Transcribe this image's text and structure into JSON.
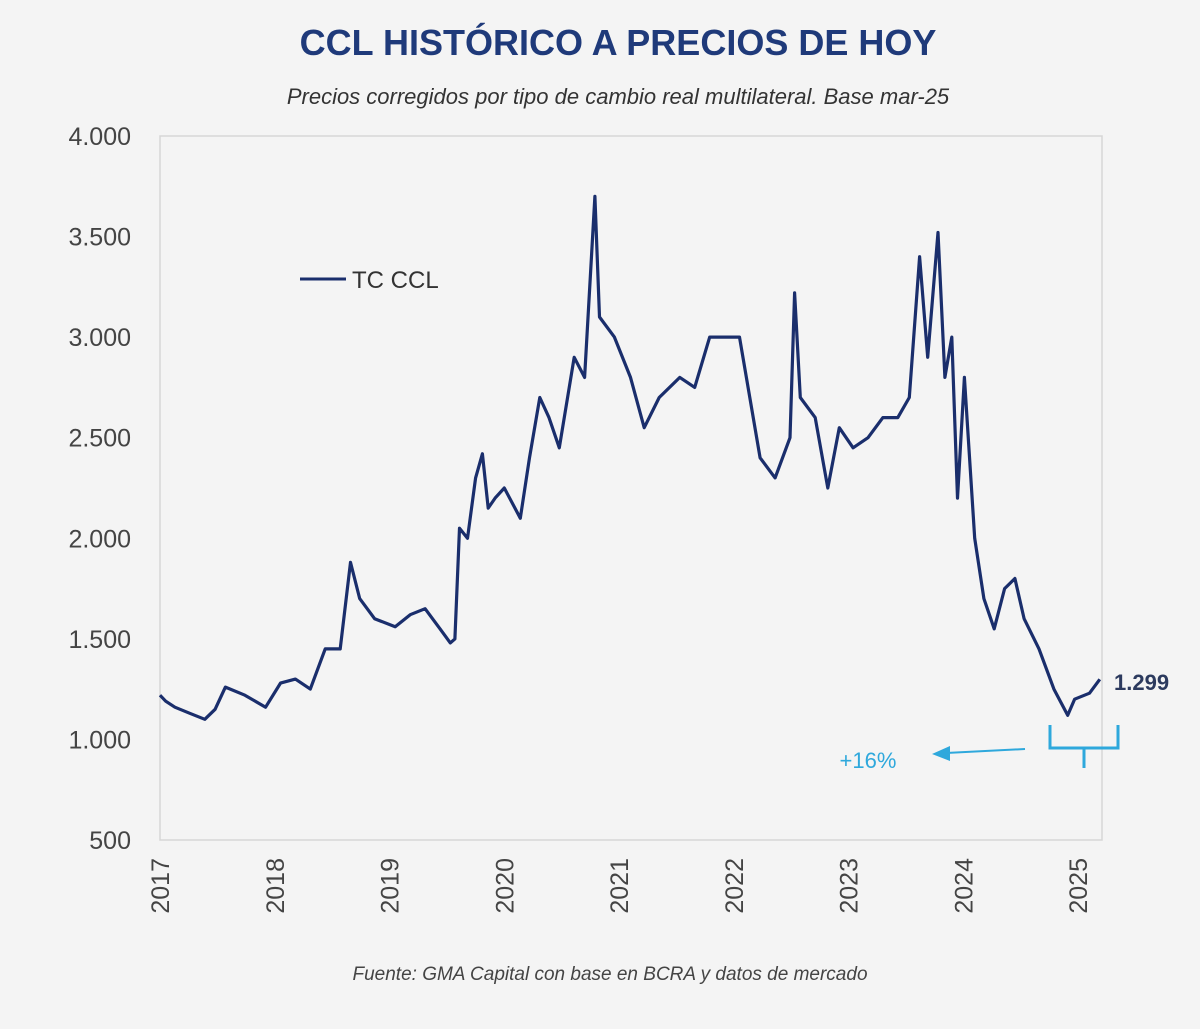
{
  "chart_data": {
    "type": "line",
    "title": "CCL HISTÓRICO A PRECIOS DE HOY",
    "subtitle": "Precios corregidos por tipo de cambio real multilateral. Base mar-25",
    "source": "Fuente: GMA Capital con base en BCRA y datos de mercado",
    "xlabel": "",
    "ylabel": "",
    "ylim": [
      500,
      4000
    ],
    "xlim": [
      2017,
      2025.21
    ],
    "yticks": [
      500,
      1000,
      1500,
      2000,
      2500,
      3000,
      3500,
      4000
    ],
    "ytick_labels": [
      "500",
      "1.000",
      "1.500",
      "2.000",
      "2.500",
      "3.000",
      "3.500",
      "4.000"
    ],
    "xtick_labels": [
      "2017",
      "2018",
      "2019",
      "2020",
      "2021",
      "2022",
      "2023",
      "2024",
      "2025"
    ],
    "grid": false,
    "legend": {
      "position": "top-left",
      "entries": [
        "TC CCL"
      ]
    },
    "series": [
      {
        "name": "TC CCL",
        "color": "#1a2e6c",
        "points": [
          [
            2017.0,
            1220
          ],
          [
            2017.05,
            1190
          ],
          [
            2017.13,
            1160
          ],
          [
            2017.26,
            1130
          ],
          [
            2017.39,
            1100
          ],
          [
            2017.48,
            1150
          ],
          [
            2017.57,
            1260
          ],
          [
            2017.74,
            1220
          ],
          [
            2017.92,
            1160
          ],
          [
            2018.05,
            1280
          ],
          [
            2018.18,
            1300
          ],
          [
            2018.31,
            1250
          ],
          [
            2018.44,
            1450
          ],
          [
            2018.57,
            1450
          ],
          [
            2018.66,
            1880
          ],
          [
            2018.74,
            1700
          ],
          [
            2018.87,
            1600
          ],
          [
            2019.05,
            1560
          ],
          [
            2019.18,
            1620
          ],
          [
            2019.31,
            1650
          ],
          [
            2019.44,
            1550
          ],
          [
            2019.53,
            1480
          ],
          [
            2019.57,
            1500
          ],
          [
            2019.61,
            2050
          ],
          [
            2019.68,
            2000
          ],
          [
            2019.75,
            2300
          ],
          [
            2019.81,
            2420
          ],
          [
            2019.86,
            2150
          ],
          [
            2019.92,
            2200
          ],
          [
            2020.0,
            2250
          ],
          [
            2020.14,
            2100
          ],
          [
            2020.22,
            2400
          ],
          [
            2020.31,
            2700
          ],
          [
            2020.39,
            2600
          ],
          [
            2020.48,
            2450
          ],
          [
            2020.61,
            2900
          ],
          [
            2020.7,
            2800
          ],
          [
            2020.79,
            3700
          ],
          [
            2020.83,
            3100
          ],
          [
            2020.96,
            3000
          ],
          [
            2021.1,
            2800
          ],
          [
            2021.22,
            2550
          ],
          [
            2021.35,
            2700
          ],
          [
            2021.53,
            2800
          ],
          [
            2021.66,
            2750
          ],
          [
            2021.79,
            3000
          ],
          [
            2022.05,
            3000
          ],
          [
            2022.14,
            2700
          ],
          [
            2022.23,
            2400
          ],
          [
            2022.36,
            2300
          ],
          [
            2022.49,
            2500
          ],
          [
            2022.53,
            3220
          ],
          [
            2022.58,
            2700
          ],
          [
            2022.71,
            2600
          ],
          [
            2022.82,
            2250
          ],
          [
            2022.92,
            2550
          ],
          [
            2023.04,
            2450
          ],
          [
            2023.17,
            2500
          ],
          [
            2023.3,
            2600
          ],
          [
            2023.43,
            2600
          ],
          [
            2023.53,
            2700
          ],
          [
            2023.62,
            3400
          ],
          [
            2023.69,
            2900
          ],
          [
            2023.78,
            3520
          ],
          [
            2023.84,
            2800
          ],
          [
            2023.9,
            3000
          ],
          [
            2023.95,
            2200
          ],
          [
            2024.01,
            2800
          ],
          [
            2024.1,
            2000
          ],
          [
            2024.18,
            1700
          ],
          [
            2024.27,
            1550
          ],
          [
            2024.36,
            1750
          ],
          [
            2024.45,
            1800
          ],
          [
            2024.53,
            1600
          ],
          [
            2024.66,
            1450
          ],
          [
            2024.79,
            1250
          ],
          [
            2024.91,
            1120
          ],
          [
            2024.97,
            1200
          ],
          [
            2025.1,
            1230
          ],
          [
            2025.19,
            1299
          ]
        ]
      }
    ],
    "annotations": {
      "last_value": "1.299",
      "change": "+16%",
      "accent_color": "#2ea8dc"
    }
  }
}
